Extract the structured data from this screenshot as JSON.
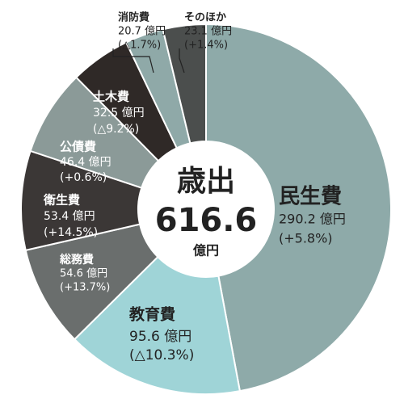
{
  "chart_data": {
    "type": "donut",
    "center_title": "歳出",
    "total": 616.6,
    "total_unit": "億円",
    "categories": [
      "民生費",
      "教育費",
      "総務費",
      "衛生費",
      "公債費",
      "土木費",
      "消防費",
      "そのほか"
    ],
    "values": [
      290.2,
      95.6,
      54.6,
      53.4,
      46.4,
      32.5,
      20.7,
      23.1
    ],
    "value_labels": [
      "290.2 億円",
      "95.6 億円",
      "54.6 億円",
      "53.4 億円",
      "46.4 億円",
      "32.5 億円",
      "20.7 億円",
      "23.1 億円"
    ],
    "changes": [
      5.8,
      -10.3,
      13.7,
      14.5,
      0.6,
      -9.2,
      -1.7,
      1.4
    ],
    "change_labels": [
      "(+5.8%)",
      "(△10.3%)",
      "(+13.7%)",
      "(+14.5%)",
      "(+0.6%)",
      "(△9.2%)",
      "(△1.7%)",
      "(+1.4%)"
    ],
    "colors": [
      "#8eaaa9",
      "#9fd4d7",
      "#6a6e6d",
      "#3b3736",
      "#8b9a98",
      "#2f2927",
      "#8fa9a8",
      "#4b4e4d"
    ]
  }
}
